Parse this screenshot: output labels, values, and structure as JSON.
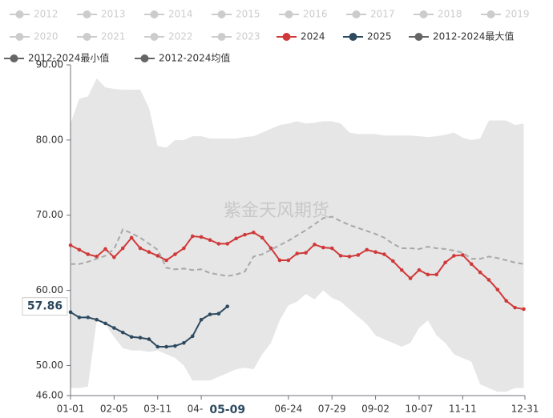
{
  "chart_data": {
    "type": "line",
    "hidden_series": [
      "2012",
      "2013",
      "2014",
      "2015",
      "2016",
      "2017",
      "2018",
      "2019",
      "2020",
      "2021",
      "2022",
      "2023"
    ],
    "hidden_color": "#cccccc",
    "watermark": "紫金天风期货",
    "x": [
      0,
      7,
      14,
      21,
      28,
      35,
      42,
      49,
      56,
      63,
      70,
      77,
      84,
      91,
      98,
      105,
      112,
      119,
      126,
      133,
      140,
      147,
      154,
      161,
      168,
      175,
      182,
      189,
      196,
      203,
      210,
      217,
      224,
      231,
      238,
      245,
      252,
      259,
      266,
      273,
      280,
      287,
      294,
      301,
      308,
      315,
      322,
      329,
      336,
      343,
      350,
      357,
      364
    ],
    "xlim": [
      0,
      365
    ],
    "xticks": [
      {
        "value": 0,
        "label": "01-01"
      },
      {
        "value": 35,
        "label": "02-05"
      },
      {
        "value": 70,
        "label": "03-11"
      },
      {
        "value": 105,
        "label": "04-15"
      },
      {
        "value": 175,
        "label": "06-24"
      },
      {
        "value": 210,
        "label": "07-29"
      },
      {
        "value": 245,
        "label": "09-02"
      },
      {
        "value": 280,
        "label": "10-07"
      },
      {
        "value": 315,
        "label": "11-11"
      },
      {
        "value": 365,
        "label": "12-31"
      }
    ],
    "ylim": [
      46,
      90
    ],
    "yticks": [
      {
        "value": 46,
        "label": "46.00"
      },
      {
        "value": 50,
        "label": "50.00"
      },
      {
        "value": 60,
        "label": "60.00"
      },
      {
        "value": 70,
        "label": "70.00"
      },
      {
        "value": 80,
        "label": "80.00"
      },
      {
        "value": 90,
        "label": "90.00"
      }
    ],
    "x_pointer": {
      "value": 126,
      "label": "05-09"
    },
    "y_pointer": {
      "value": 57.86,
      "label": "57.86"
    },
    "series": [
      {
        "name": "2024",
        "color": "#d0393a",
        "style": "line",
        "values": [
          66.0,
          65.4,
          64.8,
          64.5,
          65.5,
          64.4,
          65.6,
          67.0,
          65.6,
          65.1,
          64.6,
          64.0,
          64.8,
          65.6,
          67.2,
          67.1,
          66.7,
          66.2,
          66.2,
          66.9,
          67.4,
          67.7,
          67.0,
          65.6,
          64.0,
          64.0,
          64.9,
          65.0,
          66.1,
          65.7,
          65.6,
          64.6,
          64.5,
          64.7,
          65.4,
          65.1,
          64.8,
          63.9,
          62.7,
          61.6,
          62.7,
          62.1,
          62.1,
          63.7,
          64.6,
          64.7,
          63.5,
          62.4,
          61.4,
          60.1,
          58.6,
          57.7,
          57.5
        ]
      },
      {
        "name": "2025",
        "color": "#2d4a60",
        "style": "line",
        "x": [
          0,
          7,
          14,
          21,
          28,
          35,
          42,
          49,
          56,
          63,
          70,
          77,
          84,
          91,
          98,
          105,
          112,
          119,
          126
        ],
        "values": [
          57.1,
          56.4,
          56.4,
          56.1,
          55.6,
          55.0,
          54.4,
          53.8,
          53.7,
          53.5,
          52.5,
          52.5,
          52.6,
          53.0,
          53.9,
          56.1,
          56.8,
          56.9,
          57.86
        ]
      },
      {
        "name": "2012-2024最大值",
        "color": "#666666",
        "style": "band-top",
        "values": [
          82.2,
          85.5,
          85.8,
          88.2,
          87,
          86.8,
          86.7,
          86.7,
          86.7,
          84.3,
          79.2,
          79,
          80,
          80,
          80.5,
          80.5,
          80.2,
          80.2,
          80.2,
          80.2,
          80.4,
          80.5,
          81,
          81.5,
          82,
          82.2,
          82.5,
          82.2,
          82.3,
          82.5,
          82.5,
          82.2,
          81,
          80.8,
          80.8,
          80.8,
          80.6,
          80.6,
          80.6,
          80.6,
          80.5,
          80.4,
          80.5,
          80.7,
          81,
          80.3,
          80,
          80.2,
          82.6,
          82.6,
          82.6,
          82,
          82.2
        ]
      },
      {
        "name": "2012-2024最小值",
        "color": "#666666",
        "style": "band-bottom",
        "values": [
          47,
          47,
          47.2,
          56,
          55.5,
          53.8,
          52.3,
          52,
          52,
          51.8,
          52,
          51.5,
          51,
          50,
          48,
          48,
          48,
          48.5,
          49,
          49.5,
          49.7,
          49.5,
          51.5,
          53,
          56,
          58,
          58.5,
          59.5,
          58.8,
          60,
          59,
          58.5,
          57.5,
          56.5,
          55.5,
          54,
          53.5,
          53,
          52.5,
          53,
          55,
          56,
          54,
          53,
          51.5,
          51,
          50.5,
          47.5,
          47,
          46.5,
          46.5,
          47,
          47
        ]
      },
      {
        "name": "2012-2024均值",
        "color": "#666666",
        "style": "dashed",
        "values": [
          63.5,
          63.5,
          63.8,
          64.2,
          64.6,
          65.5,
          68.1,
          67.6,
          67,
          66.2,
          65.4,
          63,
          62.8,
          62.9,
          62.7,
          62.8,
          62.3,
          62.1,
          61.9,
          62.1,
          62.5,
          64.5,
          64.8,
          65.4,
          66,
          66.6,
          67.3,
          68,
          68.8,
          69.6,
          69.8,
          69.2,
          68.7,
          68.3,
          67.9,
          67.5,
          67,
          66.2,
          65.6,
          65.6,
          65.5,
          65.8,
          65.6,
          65.5,
          65.3,
          65,
          64.2,
          64.2,
          64.5,
          64.3,
          64,
          63.7,
          63.5
        ]
      }
    ]
  }
}
